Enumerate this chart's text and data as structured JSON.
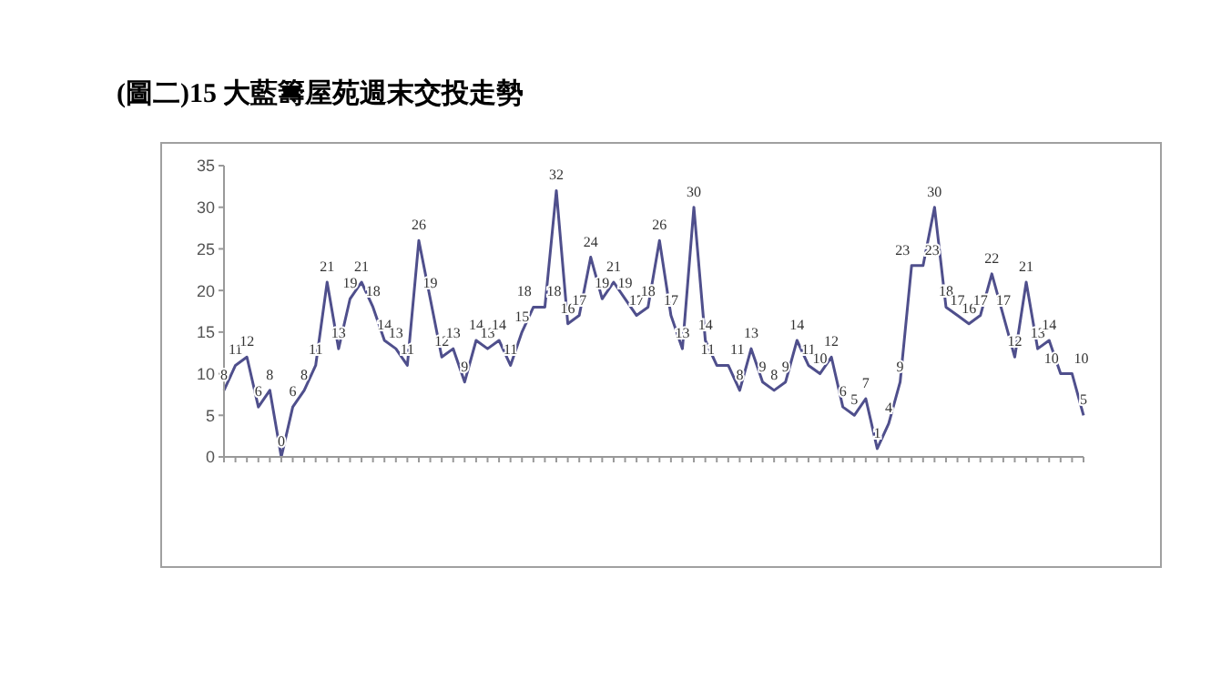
{
  "chart_data": {
    "type": "line",
    "title": "(圖二)15 大藍籌屋苑週末交投走勢",
    "categories": [
      null,
      null,
      null,
      null,
      null,
      null,
      null,
      null,
      null,
      null,
      null,
      null,
      null,
      null,
      null,
      null,
      null,
      null,
      null,
      null,
      null,
      null,
      null,
      null,
      null,
      null,
      null,
      null,
      null,
      null,
      null,
      null,
      null,
      null,
      null,
      null,
      null,
      null,
      null,
      null,
      null,
      null,
      null,
      null,
      null,
      null,
      null,
      null,
      null,
      null,
      null,
      null,
      null,
      null,
      null,
      null,
      null,
      null,
      null,
      null,
      null,
      null,
      null,
      null,
      null,
      null,
      null,
      null,
      null,
      null,
      null,
      null,
      null,
      null,
      null,
      null
    ],
    "series": [
      {
        "color": "#4f4f8c",
        "values": [
          8,
          11,
          12,
          6,
          8,
          0,
          6,
          8,
          11,
          21,
          13,
          19,
          21,
          18,
          14,
          13,
          11,
          26,
          19,
          12,
          13,
          9,
          14,
          13,
          14,
          11,
          15,
          18,
          18,
          32,
          16,
          17,
          24,
          19,
          21,
          19,
          17,
          18,
          26,
          17,
          13,
          30,
          14,
          11,
          11,
          8,
          13,
          9,
          8,
          9,
          14,
          11,
          10,
          12,
          6,
          5,
          7,
          1,
          4,
          9,
          23,
          23,
          30,
          18,
          17,
          16,
          17,
          22,
          17,
          12,
          21,
          13,
          14,
          10,
          10,
          5
        ]
      }
    ],
    "ylim": [
      0,
      35
    ],
    "yticks": [
      0,
      5,
      10,
      15,
      20,
      25,
      30,
      35
    ],
    "grid": false,
    "legend": false,
    "marker": "none",
    "line_style": "solid",
    "data_labels": true
  }
}
